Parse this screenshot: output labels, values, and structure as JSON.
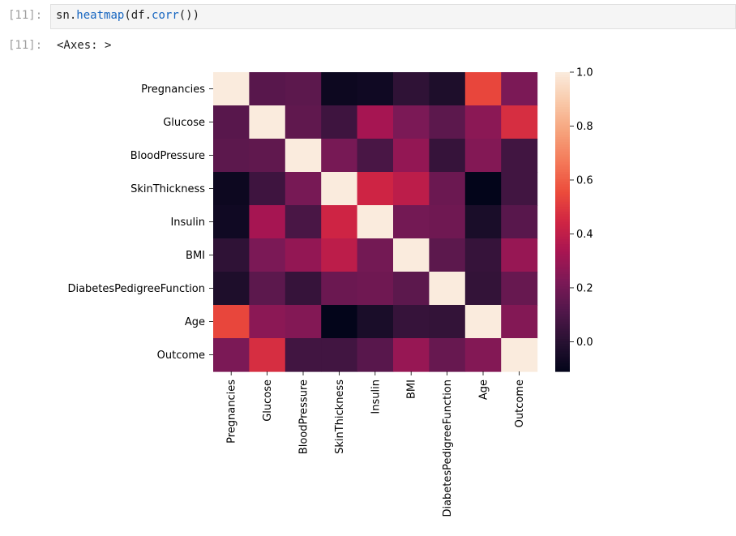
{
  "cell": {
    "in_prompt": "[11]:",
    "out_prompt": "[11]:",
    "code": {
      "p1": "sn.",
      "f1": "heatmap",
      "p2": "(df.",
      "f2": "corr",
      "p3": "())"
    },
    "output_text": "<Axes: >"
  },
  "chart_data": {
    "type": "heatmap",
    "colormap": "rocket",
    "labels": [
      "Pregnancies",
      "Glucose",
      "BloodPressure",
      "SkinThickness",
      "Insulin",
      "BMI",
      "DiabetesPedigreeFunction",
      "Age",
      "Outcome"
    ],
    "matrix": [
      [
        1.0,
        0.13,
        0.14,
        -0.08,
        -0.07,
        0.02,
        -0.03,
        0.54,
        0.22
      ],
      [
        0.13,
        1.0,
        0.15,
        0.06,
        0.33,
        0.22,
        0.14,
        0.26,
        0.47
      ],
      [
        0.14,
        0.15,
        1.0,
        0.21,
        0.09,
        0.28,
        0.04,
        0.24,
        0.07
      ],
      [
        -0.08,
        0.06,
        0.21,
        1.0,
        0.44,
        0.39,
        0.18,
        -0.11,
        0.07
      ],
      [
        -0.07,
        0.33,
        0.09,
        0.44,
        1.0,
        0.2,
        0.19,
        -0.04,
        0.13
      ],
      [
        0.02,
        0.22,
        0.28,
        0.39,
        0.2,
        1.0,
        0.14,
        0.04,
        0.29
      ],
      [
        -0.03,
        0.14,
        0.04,
        0.18,
        0.19,
        0.14,
        1.0,
        0.03,
        0.17
      ],
      [
        0.54,
        0.26,
        0.24,
        -0.11,
        -0.04,
        0.04,
        0.03,
        1.0,
        0.24
      ],
      [
        0.22,
        0.47,
        0.07,
        0.07,
        0.13,
        0.29,
        0.17,
        0.24,
        1.0
      ]
    ],
    "colorbar": {
      "range": [
        -0.11,
        1.0
      ],
      "ticks": [
        "0.0",
        "0.2",
        "0.4",
        "0.6",
        "0.8",
        "1.0"
      ]
    }
  }
}
